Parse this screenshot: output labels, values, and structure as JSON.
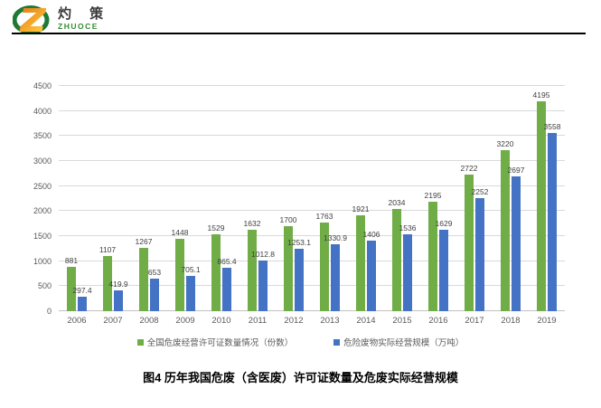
{
  "logo": {
    "name_cn": "灼 策",
    "name_en": "ZHUOCE"
  },
  "chart_data": {
    "type": "bar",
    "categories": [
      "2006",
      "2007",
      "2008",
      "2009",
      "2010",
      "2011",
      "2012",
      "2013",
      "2014",
      "2015",
      "2016",
      "2017",
      "2018",
      "2019"
    ],
    "series": [
      {
        "name": "全国危废经营许可证数量情况（份数）",
        "color": "#70AD47",
        "values": [
          881,
          1107,
          1267,
          1448,
          1529,
          1632,
          1700,
          1763,
          1921,
          2034,
          2195,
          2722,
          3220,
          4195
        ]
      },
      {
        "name": "危险废物实际经营规模（万吨）",
        "color": "#4472C4",
        "values": [
          297.4,
          419.9,
          653,
          705.1,
          865.4,
          1012.8,
          1253.1,
          1330.9,
          1406,
          1536,
          1629,
          2252,
          2697,
          3558
        ]
      }
    ],
    "title": "",
    "xlabel": "",
    "ylabel": "",
    "ylim": [
      0,
      4500
    ],
    "ytick_step": 500,
    "grid": true,
    "legend_position": "bottom"
  },
  "caption": "图4  历年我国危废（含医废）许可证数量及危废实际经营规模",
  "colors": {
    "series1_green": "#70AD47",
    "series2_blue": "#4472C4",
    "gridline": "#D9D9D9",
    "tick_text": "#595959",
    "data_label_text": "#404040",
    "logo_green": "#2E8B2E",
    "logo_orange": "#F6A21C"
  }
}
